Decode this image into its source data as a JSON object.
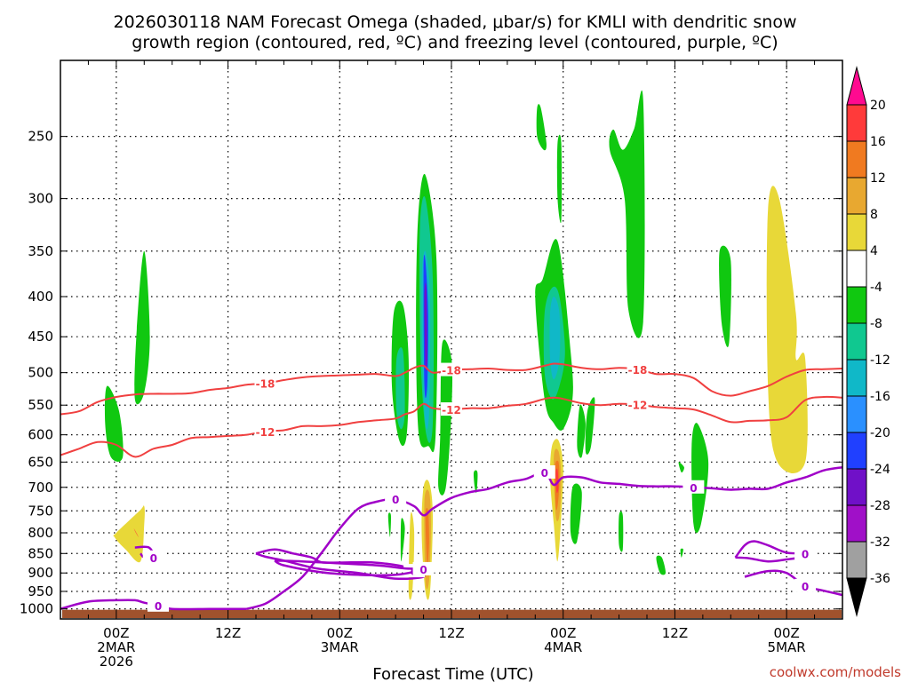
{
  "title_line1": "2026030118 NAM Forecast Omega (shaded, μbar/s) for KMLI with dendritic snow",
  "title_line2": "growth region (contoured, red, ºC) and freezing level (contoured, purple, ºC)",
  "x_axis_label": "Forecast Time (UTC)",
  "credit": "coolwx.com/models",
  "chart_data": {
    "type": "heatmap",
    "title": "2026030118 NAM Forecast Omega (shaded, μbar/s) for KMLI with dendritic snow growth region (contoured, red, ºC) and freezing level (contoured, purple, ºC)",
    "xlabel": "Forecast Time (UTC)",
    "ylabel": "",
    "x_range_hours": [
      -6,
      78
    ],
    "y_range_mb": [
      200,
      1030
    ],
    "pressure_ticks": [
      {
        "p": 250,
        "label": "250"
      },
      {
        "p": 300,
        "label": "300"
      },
      {
        "p": 350,
        "label": "350"
      },
      {
        "p": 400,
        "label": "400"
      },
      {
        "p": 450,
        "label": "450"
      },
      {
        "p": 500,
        "label": "500"
      },
      {
        "p": 550,
        "label": "550"
      },
      {
        "p": 600,
        "label": "600"
      },
      {
        "p": 650,
        "label": "650"
      },
      {
        "p": 700,
        "label": "700"
      },
      {
        "p": 750,
        "label": "750"
      },
      {
        "p": 800,
        "label": "800"
      },
      {
        "p": 850,
        "label": "850"
      },
      {
        "p": 900,
        "label": "900"
      },
      {
        "p": 950,
        "label": "950"
      },
      {
        "p": 1000,
        "label": "1000"
      }
    ],
    "time_ticks": [
      {
        "h": 0,
        "l1": "00Z",
        "l2": "2MAR",
        "l3": "2026"
      },
      {
        "h": 12,
        "l1": "12Z",
        "l2": "",
        "l3": ""
      },
      {
        "h": 24,
        "l1": "00Z",
        "l2": "3MAR",
        "l3": ""
      },
      {
        "h": 36,
        "l1": "12Z",
        "l2": "",
        "l3": ""
      },
      {
        "h": 48,
        "l1": "00Z",
        "l2": "4MAR",
        "l3": ""
      },
      {
        "h": 60,
        "l1": "12Z",
        "l2": "",
        "l3": ""
      },
      {
        "h": 72,
        "l1": "00Z",
        "l2": "5MAR",
        "l3": ""
      }
    ],
    "colorbar": {
      "levels": [
        "20",
        "16",
        "12",
        "8",
        "4",
        "-4",
        "-8",
        "-12",
        "-16",
        "-20",
        "-24",
        "-28",
        "-32",
        "-36"
      ],
      "colors": [
        "#ff0a90",
        "#ff3a3a",
        "#f07a20",
        "#e8a830",
        "#e8d838",
        "#ffffff",
        "#10c810",
        "#10c890",
        "#10b8c8",
        "#2a90ff",
        "#2040ff",
        "#7010c8",
        "#a010c8",
        "#a0a0a0",
        "#000000"
      ]
    },
    "shaded_regions": [
      {
        "omega": -8,
        "color": "#10c810",
        "h": [
          -1.0,
          0.3,
          0.7,
          -0.6,
          -1.2
        ],
        "p": [
          520,
          560,
          640,
          640,
          580
        ]
      },
      {
        "omega": -8,
        "color": "#10c810",
        "h": [
          2.2,
          3.0,
          3.6,
          3.0,
          2.0
        ],
        "p": [
          440,
          350,
          450,
          530,
          540
        ]
      },
      {
        "omega": 4,
        "color": "#e8d838",
        "h": [
          0.0,
          2.5,
          3.0,
          3.0,
          2.6,
          1.0,
          -0.2
        ],
        "p": [
          800,
          750,
          740,
          780,
          870,
          840,
          810
        ]
      },
      {
        "omega": 20,
        "color": "#ff3a3a",
        "h": [
          1.9,
          2.4,
          2.1
        ],
        "p": [
          790,
          810,
          800
        ]
      },
      {
        "omega": -8,
        "color": "#10c810",
        "h": [
          29.8,
          30.8,
          31.4,
          31.2,
          30.4,
          29.6
        ],
        "p": [
          420,
          410,
          480,
          600,
          610,
          520
        ]
      },
      {
        "omega": -12,
        "color": "#10c890",
        "h": [
          30.1,
          30.8,
          31.0,
          30.6,
          30.1
        ],
        "p": [
          480,
          470,
          560,
          590,
          560
        ]
      },
      {
        "omega": -8,
        "color": "#10c810",
        "h": [
          32.4,
          33.2,
          34.4,
          34.3,
          33.5,
          32.5,
          32.2
        ],
        "p": [
          320,
          280,
          360,
          600,
          620,
          600,
          450
        ]
      },
      {
        "omega": -12,
        "color": "#10c890",
        "h": [
          32.6,
          33.2,
          34.0,
          34.0,
          33.3,
          32.7
        ],
        "p": [
          330,
          300,
          380,
          580,
          600,
          480
        ]
      },
      {
        "omega": -16,
        "color": "#10b8c8",
        "h": [
          32.8,
          33.2,
          33.7,
          33.6,
          33.2,
          32.9
        ],
        "p": [
          380,
          350,
          400,
          560,
          580,
          480
        ]
      },
      {
        "omega": -24,
        "color": "#2040ff",
        "h": [
          33.0,
          33.2,
          33.5,
          33.4,
          33.1
        ],
        "p": [
          370,
          360,
          420,
          520,
          520
        ]
      },
      {
        "omega": -28,
        "color": "#7010c8",
        "h": [
          33.1,
          33.3,
          33.4,
          33.2
        ],
        "p": [
          400,
          390,
          480,
          490
        ]
      },
      {
        "omega": -8,
        "color": "#10c810",
        "h": [
          35.0,
          36.0,
          36.0,
          35.4,
          34.6,
          34.8
        ],
        "p": [
          460,
          480,
          560,
          700,
          700,
          600
        ]
      },
      {
        "omega": 4,
        "color": "#e8d838",
        "h": [
          31.6,
          32.0,
          31.8,
          31.4
        ],
        "p": [
          760,
          800,
          950,
          950
        ]
      },
      {
        "omega": -8,
        "color": "#10c810",
        "h": [
          30.6,
          31.0,
          30.6
        ],
        "p": [
          770,
          790,
          870
        ]
      },
      {
        "omega": -8,
        "color": "#10c810",
        "h": [
          29.2,
          29.5,
          29.4
        ],
        "p": [
          760,
          760,
          810
        ]
      },
      {
        "omega": 4,
        "color": "#e8d838",
        "h": [
          33.0,
          33.6,
          34.0,
          33.7,
          33.2,
          32.8
        ],
        "p": [
          700,
          690,
          760,
          950,
          950,
          800
        ]
      },
      {
        "omega": 8,
        "color": "#e8a830",
        "h": [
          33.1,
          33.6,
          33.8,
          33.6,
          33.2
        ],
        "p": [
          730,
          710,
          780,
          920,
          920
        ]
      },
      {
        "omega": 12,
        "color": "#f07a20",
        "h": [
          33.2,
          33.5,
          33.6,
          33.4
        ],
        "p": [
          760,
          750,
          820,
          880
        ]
      },
      {
        "omega": -8,
        "color": "#10c810",
        "h": [
          38.4,
          38.8,
          38.7,
          38.5
        ],
        "p": [
          670,
          670,
          710,
          700
        ]
      },
      {
        "omega": -8,
        "color": "#10c810",
        "h": [
          45.2,
          45.6,
          46.2,
          45.9,
          45.2
        ],
        "p": [
          230,
          230,
          255,
          260,
          250
        ]
      },
      {
        "omega": -8,
        "color": "#10c810",
        "h": [
          47.4,
          47.8,
          47.8,
          47.4
        ],
        "p": [
          255,
          255,
          320,
          300
        ]
      },
      {
        "omega": -8,
        "color": "#10c810",
        "h": [
          45.0,
          45.8,
          47.4,
          48.8,
          49.0,
          48.0,
          47.0,
          46.0
        ],
        "p": [
          400,
          380,
          340,
          470,
          540,
          590,
          580,
          540
        ]
      },
      {
        "omega": -12,
        "color": "#10c890",
        "h": [
          46.0,
          46.8,
          47.6,
          48.2,
          47.6,
          46.8,
          46.0
        ],
        "p": [
          420,
          390,
          400,
          470,
          520,
          540,
          500
        ]
      },
      {
        "omega": -16,
        "color": "#10b8c8",
        "h": [
          46.6,
          47.0,
          47.6,
          47.6,
          47.0,
          46.6
        ],
        "p": [
          420,
          400,
          420,
          480,
          510,
          480
        ]
      },
      {
        "omega": -8,
        "color": "#10c810",
        "h": [
          49.8,
          50.4,
          50.0,
          49.5
        ],
        "p": [
          550,
          580,
          640,
          620
        ]
      },
      {
        "omega": 4,
        "color": "#e8d838",
        "h": [
          46.8,
          47.5,
          48.0,
          47.8,
          47.4,
          47.0,
          46.6
        ],
        "p": [
          620,
          610,
          660,
          760,
          870,
          780,
          680
        ]
      },
      {
        "omega": 8,
        "color": "#e8a830",
        "h": [
          47.0,
          47.5,
          47.8,
          47.6,
          47.2
        ],
        "p": [
          640,
          630,
          680,
          760,
          760
        ]
      },
      {
        "omega": 12,
        "color": "#f07a20",
        "h": [
          47.1,
          47.5,
          47.6,
          47.4,
          47.2
        ],
        "p": [
          660,
          650,
          690,
          740,
          740
        ]
      },
      {
        "omega": 20,
        "color": "#ff3a3a",
        "h": [
          47.2,
          47.4,
          47.5,
          47.3
        ],
        "p": [
          670,
          665,
          700,
          710
        ]
      },
      {
        "omega": -8,
        "color": "#10c810",
        "h": [
          50.6,
          51.4,
          51.0,
          50.4
        ],
        "p": [
          560,
          540,
          620,
          630
        ]
      },
      {
        "omega": -8,
        "color": "#10c810",
        "h": [
          49.0,
          50.0,
          49.5,
          48.8
        ],
        "p": [
          700,
          710,
          820,
          800
        ]
      },
      {
        "omega": -8,
        "color": "#10c810",
        "h": [
          54.0,
          54.4,
          54.4,
          54.0
        ],
        "p": [
          760,
          760,
          840,
          830
        ]
      },
      {
        "omega": -8,
        "color": "#10c810",
        "h": [
          53.4,
          54.4,
          55.6,
          56.6,
          56.6,
          55.0,
          54.6,
          53.0
        ],
        "p": [
          245,
          260,
          245,
          225,
          430,
          415,
          300,
          260
        ]
      },
      {
        "omega": -8,
        "color": "#10c810",
        "h": [
          58.0,
          58.6,
          59.0,
          58.4
        ],
        "p": [
          860,
          860,
          900,
          900
        ]
      },
      {
        "omega": -8,
        "color": "#10c810",
        "h": [
          60.4,
          61.0,
          60.7
        ],
        "p": [
          650,
          660,
          670
        ]
      },
      {
        "omega": -8,
        "color": "#10c810",
        "h": [
          60.6,
          60.9,
          60.7
        ],
        "p": [
          840,
          840,
          860
        ]
      },
      {
        "omega": -8,
        "color": "#10c810",
        "h": [
          61.8,
          62.4,
          63.6,
          62.8,
          62.0
        ],
        "p": [
          620,
          580,
          650,
          780,
          780
        ]
      },
      {
        "omega": -8,
        "color": "#10c810",
        "h": [
          64.8,
          66.0,
          65.8,
          65.0
        ],
        "p": [
          350,
          360,
          460,
          430
        ]
      },
      {
        "omega": 4,
        "color": "#e8d838",
        "h": [
          70.0,
          71.2,
          73.0,
          73.0,
          74.0,
          74.0,
          71.0,
          70.0
        ],
        "p": [
          310,
          300,
          420,
          480,
          480,
          650,
          650,
          520
        ]
      }
    ],
    "red_contours": [
      {
        "label": "-18",
        "h": [
          -6,
          -4,
          -2,
          0,
          2,
          4,
          6,
          8,
          10,
          12,
          14,
          16,
          18,
          20,
          22,
          24,
          26,
          28,
          30,
          31,
          32,
          33,
          34,
          36,
          38,
          40,
          42,
          44,
          46,
          47,
          48,
          50,
          52,
          54,
          56,
          58,
          60,
          62,
          64,
          66,
          68,
          70,
          72,
          74,
          76,
          78
        ],
        "p": [
          565,
          560,
          545,
          537,
          533,
          532,
          532,
          531,
          526,
          523,
          518,
          516,
          511,
          507,
          505,
          504,
          503,
          502,
          505,
          500,
          493,
          490,
          500,
          496,
          495,
          494,
          496,
          496,
          490,
          487,
          488,
          493,
          495,
          493,
          495,
          502,
          502,
          508,
          528,
          535,
          528,
          520,
          506,
          496,
          495,
          494
        ]
      },
      {
        "label": "-12",
        "h": [
          -6,
          -4,
          -2,
          0,
          2,
          4,
          6,
          8,
          10,
          12,
          14,
          16,
          18,
          20,
          22,
          24,
          26,
          28,
          30,
          31,
          32,
          33,
          34,
          36,
          38,
          40,
          42,
          44,
          46,
          47,
          48,
          50,
          52,
          54,
          56,
          58,
          60,
          62,
          64,
          66,
          68,
          70,
          72,
          74,
          76,
          78
        ],
        "p": [
          637,
          625,
          613,
          618,
          640,
          625,
          618,
          606,
          604,
          602,
          600,
          594,
          592,
          585,
          585,
          583,
          578,
          575,
          572,
          565,
          560,
          548,
          555,
          557,
          555,
          555,
          551,
          548,
          540,
          538,
          540,
          547,
          550,
          548,
          549,
          553,
          555,
          557,
          567,
          578,
          576,
          575,
          570,
          542,
          537,
          538
        ]
      }
    ],
    "freezing_contours": [
      {
        "label": "0",
        "h": [
          -6,
          -3,
          0,
          2,
          3,
          4.5,
          6,
          10,
          12,
          14
        ],
        "p": [
          1000,
          979,
          975,
          975,
          982,
          990,
          1000,
          1000,
          1000,
          1000
        ]
      },
      {
        "label": "0",
        "h": [
          14,
          16,
          18,
          20,
          22,
          24,
          26,
          28,
          30,
          32,
          33,
          34,
          36,
          38,
          40,
          42,
          44,
          46,
          47,
          48,
          50,
          52,
          54,
          56,
          58,
          60,
          62,
          64,
          66,
          68,
          70,
          72,
          74,
          76,
          78
        ],
        "p": [
          1000,
          985,
          950,
          910,
          850,
          790,
          745,
          730,
          725,
          740,
          760,
          745,
          722,
          710,
          703,
          690,
          683,
          670,
          695,
          680,
          680,
          690,
          693,
          697,
          698,
          698,
          700,
          702,
          705,
          703,
          703,
          690,
          680,
          666,
          660
        ]
      },
      {
        "label": "0",
        "h": [
          15,
          17,
          19,
          21,
          22,
          24,
          27,
          29,
          31,
          32,
          33,
          30,
          26,
          22,
          20,
          18,
          16,
          15
        ],
        "p": [
          850,
          840,
          850,
          860,
          872,
          873,
          872,
          876,
          884,
          895,
          910,
          915,
          900,
          890,
          880,
          868,
          858,
          850
        ]
      },
      {
        "label": "0",
        "h": [
          17,
          20,
          24,
          28,
          31,
          33,
          30,
          26,
          22,
          18,
          17
        ],
        "p": [
          868,
          870,
          875,
          880,
          888,
          890,
          905,
          905,
          898,
          880,
          868
        ]
      },
      {
        "label": "0",
        "h": [
          2.0,
          3.5,
          4.0,
          3.0,
          2.6
        ],
        "p": [
          835,
          835,
          860,
          860,
          850
        ]
      },
      {
        "label": "0",
        "h": [
          66.5,
          67.5,
          68.5,
          70,
          72,
          74,
          74.5,
          72,
          70,
          68,
          66.5
        ],
        "p": [
          860,
          830,
          820,
          830,
          848,
          850,
          856,
          865,
          870,
          862,
          860
        ]
      },
      {
        "label": "0",
        "h": [
          67.5,
          70,
          72,
          74,
          76,
          78
        ],
        "p": [
          910,
          895,
          900,
          935,
          948,
          960
        ]
      }
    ]
  }
}
